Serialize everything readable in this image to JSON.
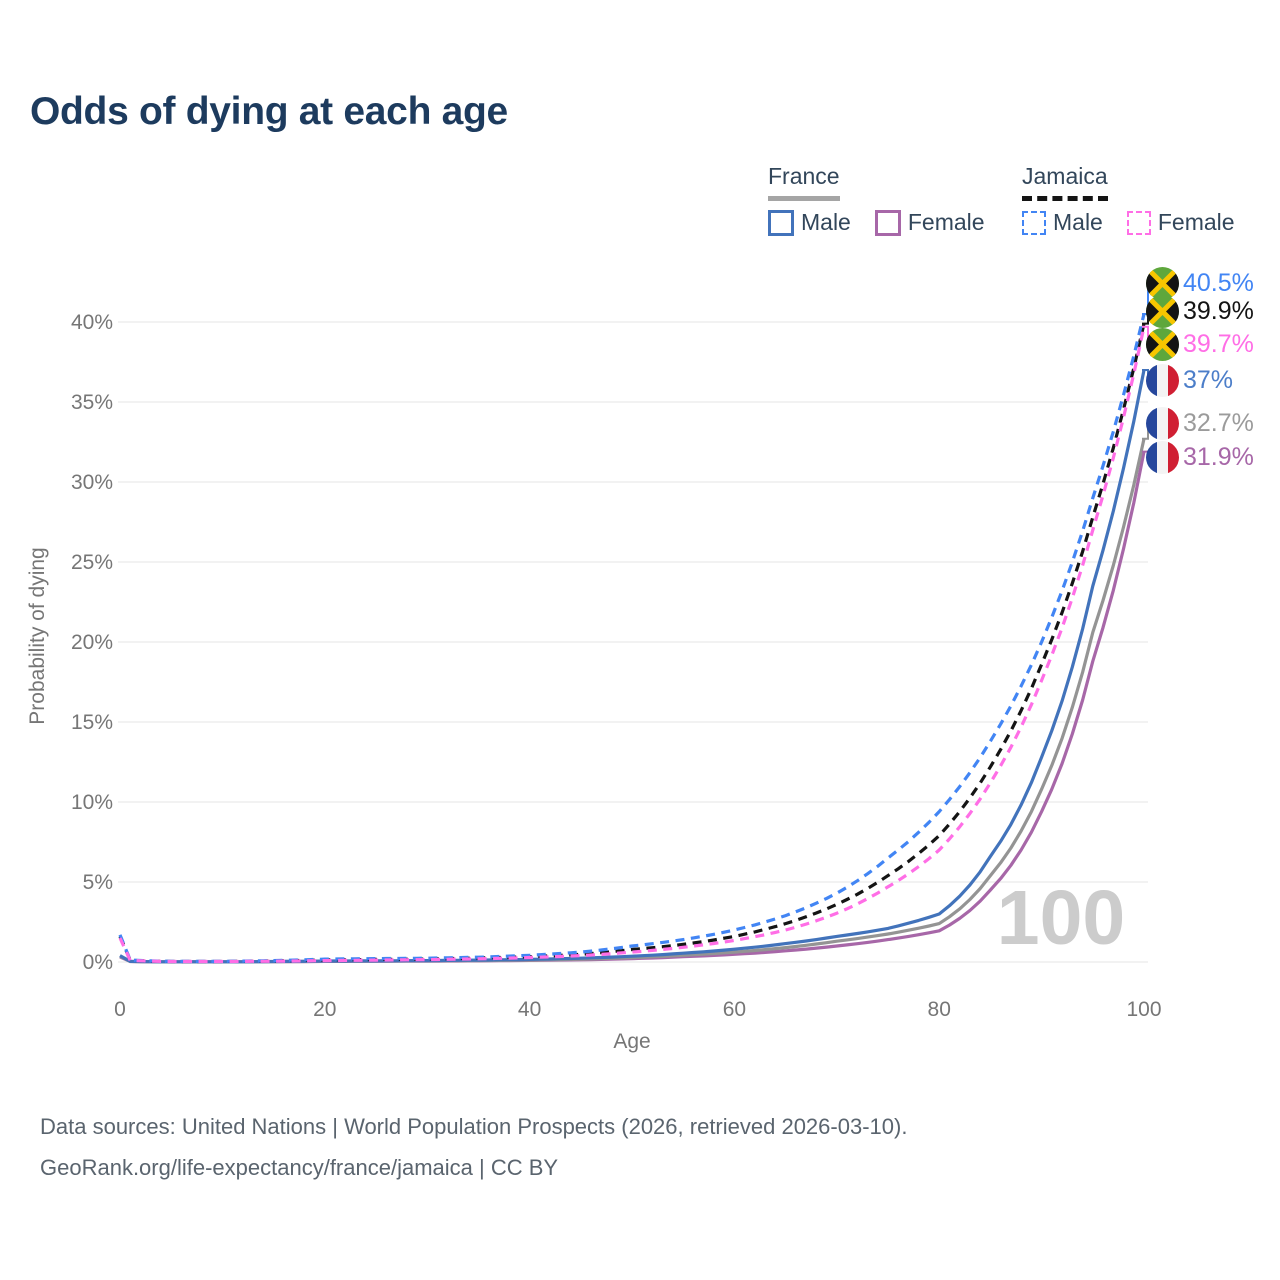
{
  "title": "Odds of dying at each age",
  "legend": {
    "groups": [
      {
        "name": "France",
        "line_style": "solid",
        "underline_color": "#a5a5a5",
        "items": [
          {
            "label": "Male",
            "color": "#4273bb"
          },
          {
            "label": "Female",
            "color": "#a767a8"
          }
        ]
      },
      {
        "name": "Jamaica",
        "line_style": "dashed",
        "underline_color": "#141414",
        "items": [
          {
            "label": "Male",
            "color": "#4285f4"
          },
          {
            "label": "Female",
            "color": "#ff6ee6"
          }
        ]
      }
    ]
  },
  "chart_data": {
    "type": "line",
    "title": "Odds of dying at each age",
    "xlabel": "Age",
    "ylabel": "Probability of dying",
    "xlim": [
      0,
      100
    ],
    "ylim_percent": [
      0,
      42.5
    ],
    "x_ticks": [
      0,
      20,
      40,
      60,
      80,
      100
    ],
    "y_ticks_percent": [
      0,
      5,
      10,
      15,
      20,
      25,
      30,
      35,
      40
    ],
    "grid": "horizontal",
    "legend_position": "top-right",
    "watermark": "100",
    "sample_ages": [
      0,
      1,
      5,
      10,
      15,
      20,
      25,
      30,
      35,
      40,
      45,
      50,
      55,
      60,
      65,
      70,
      75,
      80,
      85,
      90,
      95,
      100
    ],
    "series": [
      {
        "name": "Jamaica Male",
        "country": "Jamaica",
        "sex": "Male",
        "color": "#4285f4",
        "label_color": "#4285f4",
        "dashed": true,
        "flag": "jamaica",
        "end_label": "40.5%",
        "values_percent": [
          1.7,
          0.12,
          0.04,
          0.04,
          0.09,
          0.18,
          0.21,
          0.24,
          0.3,
          0.42,
          0.62,
          1.0,
          1.4,
          2.0,
          2.9,
          4.3,
          6.5,
          9.4,
          13.8,
          20.0,
          29.0,
          40.5
        ]
      },
      {
        "name": "Jamaica Total",
        "country": "Jamaica",
        "sex": "Both",
        "color": "#141414",
        "label_color": "#141414",
        "dashed": true,
        "flag": "jamaica",
        "end_label": "39.9%",
        "values_percent": [
          1.6,
          0.11,
          0.03,
          0.03,
          0.07,
          0.13,
          0.16,
          0.19,
          0.25,
          0.33,
          0.48,
          0.78,
          1.1,
          1.6,
          2.4,
          3.6,
          5.4,
          7.9,
          12.2,
          18.6,
          27.8,
          39.9
        ]
      },
      {
        "name": "Jamaica Female",
        "country": "Jamaica",
        "sex": "Female",
        "color": "#ff6ee6",
        "label_color": "#ff6ee6",
        "dashed": true,
        "flag": "jamaica",
        "end_label": "39.7%",
        "values_percent": [
          1.5,
          0.1,
          0.03,
          0.03,
          0.05,
          0.09,
          0.12,
          0.15,
          0.2,
          0.28,
          0.4,
          0.62,
          0.92,
          1.35,
          2.0,
          3.05,
          4.7,
          7.0,
          11.2,
          17.6,
          27.0,
          39.7
        ]
      },
      {
        "name": "France Male",
        "country": "France",
        "sex": "Male",
        "color": "#4273bb",
        "label_color": "#4c7ec9",
        "dashed": false,
        "flag": "france",
        "end_label": "37%",
        "values_percent": [
          0.4,
          0.04,
          0.01,
          0.01,
          0.03,
          0.06,
          0.07,
          0.09,
          0.12,
          0.16,
          0.24,
          0.36,
          0.55,
          0.8,
          1.15,
          1.6,
          2.1,
          3.0,
          6.6,
          12.8,
          23.5,
          37.0
        ]
      },
      {
        "name": "France Total",
        "country": "France",
        "sex": "Both",
        "color": "#949494",
        "label_color": "#9b9b9b",
        "dashed": false,
        "flag": "france",
        "end_label": "32.7%",
        "values_percent": [
          0.36,
          0.035,
          0.01,
          0.01,
          0.025,
          0.05,
          0.06,
          0.07,
          0.09,
          0.12,
          0.18,
          0.27,
          0.42,
          0.62,
          0.9,
          1.3,
          1.75,
          2.4,
          5.4,
          10.8,
          20.6,
          32.7
        ]
      },
      {
        "name": "France Female",
        "country": "France",
        "sex": "Female",
        "color": "#a767a8",
        "label_color": "#a767a8",
        "dashed": false,
        "flag": "france",
        "end_label": "31.9%",
        "values_percent": [
          0.32,
          0.03,
          0.008,
          0.008,
          0.02,
          0.035,
          0.045,
          0.055,
          0.07,
          0.1,
          0.14,
          0.21,
          0.33,
          0.48,
          0.7,
          1.0,
          1.4,
          1.95,
          4.5,
          9.4,
          18.8,
          31.9
        ]
      }
    ]
  },
  "footer": {
    "line1": "Data sources: United Nations | World Population Prospects (2026, retrieved 2026-03-10).",
    "line2": "GeoRank.org/life-expectancy/france/jamaica | CC BY"
  }
}
